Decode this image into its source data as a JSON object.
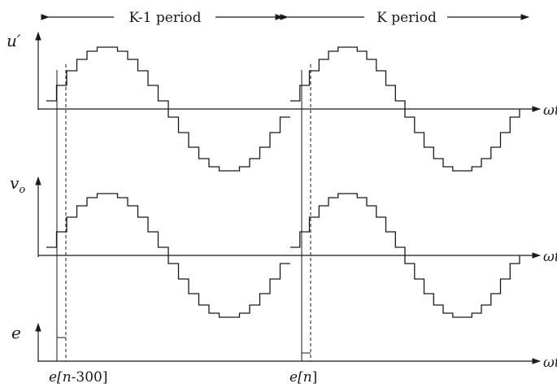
{
  "periods": {
    "left_label": "K-1 period",
    "right_label": "K period"
  },
  "signals": {
    "top_label_main": "u",
    "top_label_prime": "′",
    "middle_label_main": "v",
    "middle_label_sub": "o",
    "bottom_label": "e"
  },
  "axis_label": "ωt",
  "error_markers": {
    "left_prefix": "e[",
    "left_index": "n",
    "left_suffix": "-300]",
    "right_prefix": "e[",
    "right_index": "n",
    "right_suffix": "]"
  },
  "colors": {
    "ink": "#1a1a1a"
  }
}
